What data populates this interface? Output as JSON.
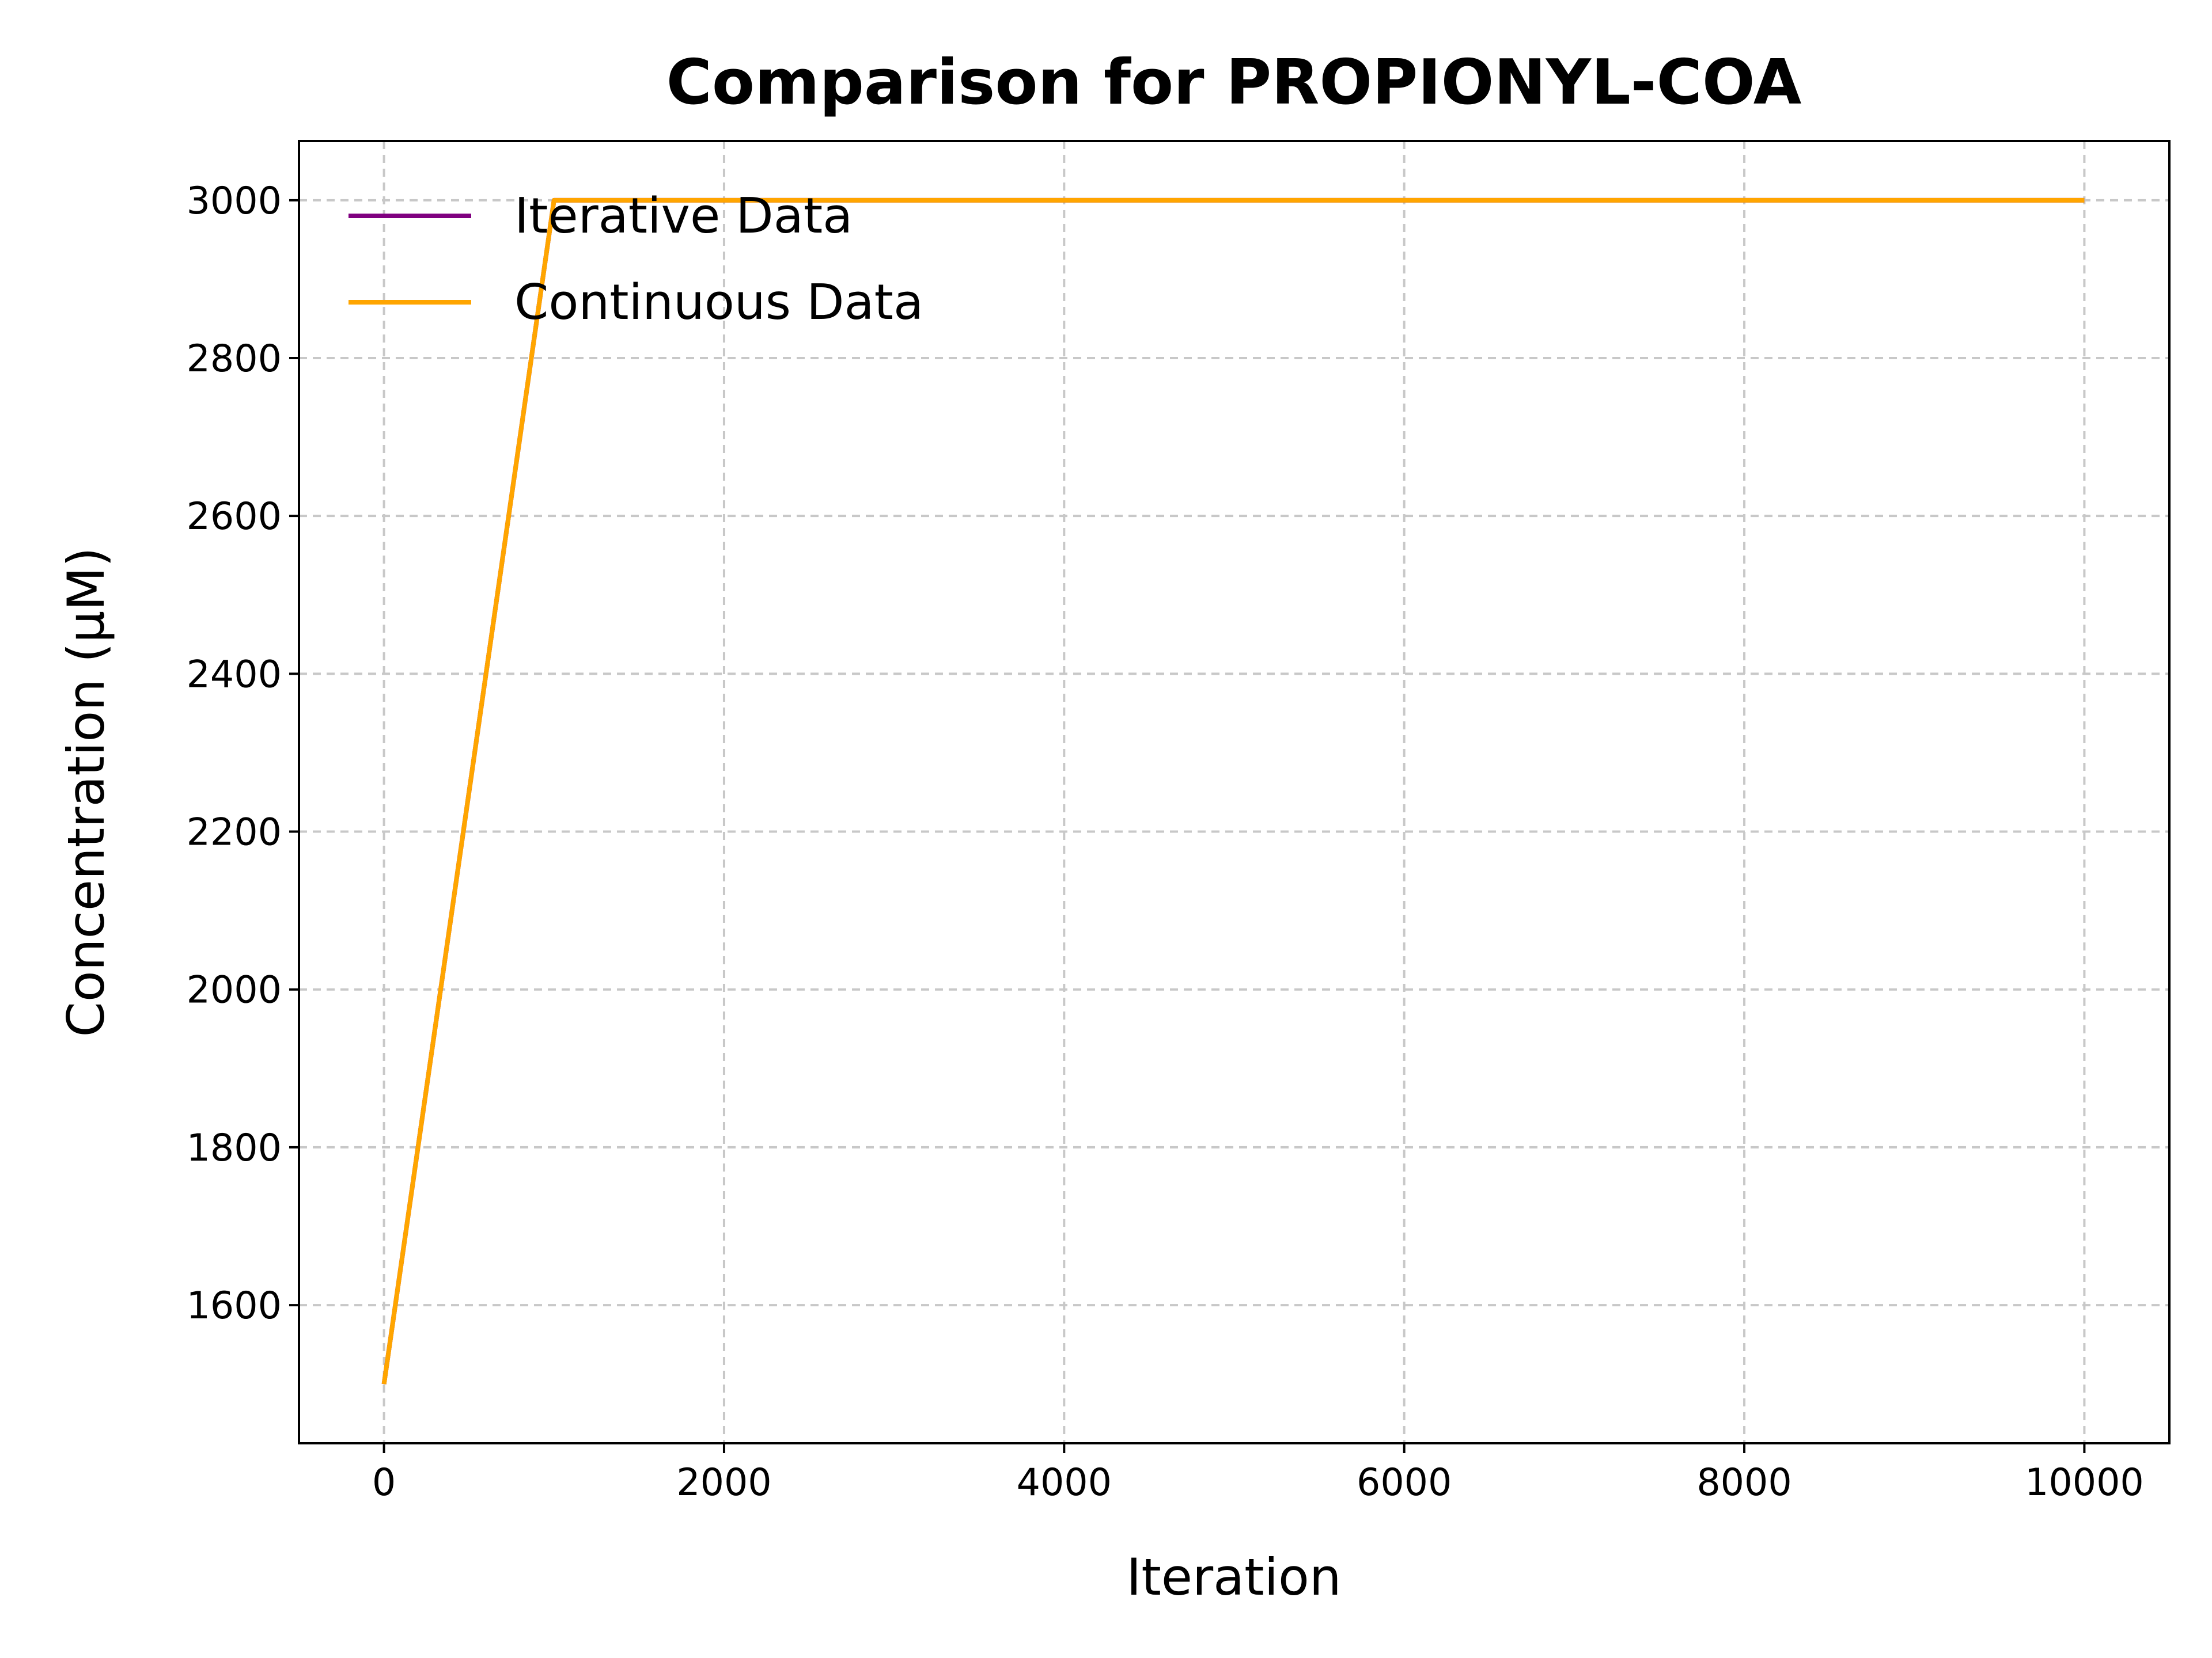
{
  "chart_data": {
    "type": "line",
    "title": "Comparison for PROPIONYL-COA",
    "xlabel": "Iteration",
    "ylabel": "Concentration (μM)",
    "xlim": [
      -500,
      10500
    ],
    "ylim": [
      1425,
      3075
    ],
    "xticks": [
      0,
      2000,
      4000,
      6000,
      8000,
      10000
    ],
    "yticks": [
      1600,
      1800,
      2000,
      2200,
      2400,
      2600,
      2800,
      3000
    ],
    "grid": true,
    "legend_position": "top-left",
    "series": [
      {
        "name": "Iterative Data",
        "color": "#800080",
        "x": [
          0,
          1000,
          2000,
          3000,
          4000,
          5000,
          6000,
          7000,
          8000,
          9000,
          10000
        ],
        "y": [
          1500,
          3000,
          3000,
          3000,
          3000,
          3000,
          3000,
          3000,
          3000,
          3000,
          3000
        ]
      },
      {
        "name": "Continuous Data",
        "color": "#FFA500",
        "x": [
          0,
          1000,
          2000,
          3000,
          4000,
          5000,
          6000,
          7000,
          8000,
          9000,
          10000
        ],
        "y": [
          1500,
          3000,
          3000,
          3000,
          3000,
          3000,
          3000,
          3000,
          3000,
          3000,
          3000
        ]
      }
    ]
  }
}
